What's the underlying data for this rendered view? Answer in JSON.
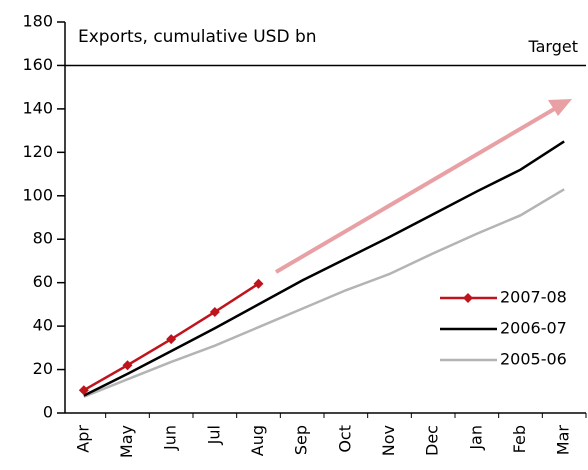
{
  "chart_data": {
    "type": "line",
    "title": "Exports, cumulative USD bn",
    "categories": [
      "Apr",
      "May",
      "Jun",
      "Jul",
      "Aug",
      "Sep",
      "Oct",
      "Nov",
      "Dec",
      "Jan",
      "Feb",
      "Mar"
    ],
    "series": [
      {
        "name": "2007-08",
        "color": "#c0141c",
        "marker": "diamond",
        "values": [
          10.5,
          22,
          34,
          46.5,
          59.5,
          null,
          null,
          null,
          null,
          null,
          null,
          null
        ]
      },
      {
        "name": "2006-07",
        "color": "#000000",
        "values": [
          8,
          18,
          28.5,
          39,
          50,
          61,
          71,
          81,
          91.5,
          102,
          112,
          125
        ]
      },
      {
        "name": "2005-06",
        "color": "#b4b4b4",
        "values": [
          7.5,
          15.5,
          23.5,
          31,
          39.5,
          48,
          56.5,
          64,
          73.5,
          82.5,
          91,
          103
        ]
      }
    ],
    "target": {
      "value": 160,
      "label": "Target"
    },
    "ylim": [
      0,
      180
    ],
    "yticks": [
      0,
      20,
      40,
      60,
      80,
      100,
      120,
      140,
      160,
      180
    ],
    "grid": false,
    "legend": "lower right"
  }
}
